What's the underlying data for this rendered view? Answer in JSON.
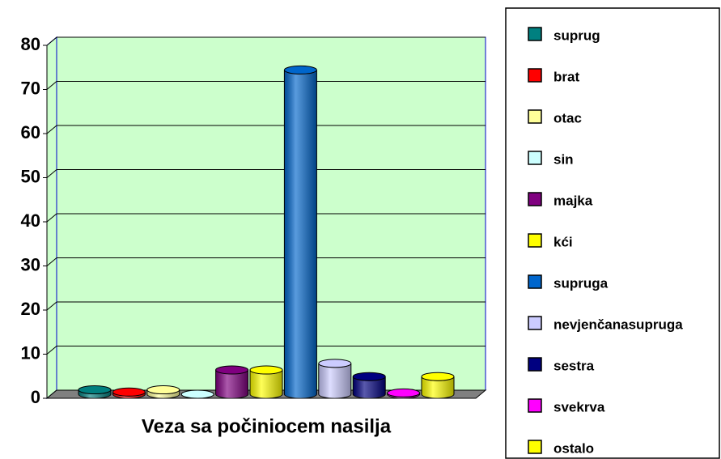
{
  "chart_data": {
    "type": "bar3d",
    "categories": [
      "Veza sa počiniocem nasilja"
    ],
    "series": [
      {
        "name": "suprug",
        "color": "#008080",
        "values": [
          1
        ]
      },
      {
        "name": "brat",
        "color": "#ff0000",
        "values": [
          0.5
        ]
      },
      {
        "name": "otac",
        "color": "#ffff99",
        "values": [
          1
        ]
      },
      {
        "name": "sin",
        "color": "#ccffff",
        "values": [
          0
        ]
      },
      {
        "name": "majka",
        "color": "#800080",
        "values": [
          5.5
        ]
      },
      {
        "name": "kći",
        "color": "#ffff00",
        "values": [
          5.5
        ]
      },
      {
        "name": "supruga",
        "color": "#0066cc",
        "values": [
          73.5
        ]
      },
      {
        "name": "nevjenčanasupruga",
        "color": "#ccccff",
        "values": [
          7
        ]
      },
      {
        "name": "sestra",
        "color": "#000080",
        "values": [
          4
        ]
      },
      {
        "name": "svekrva",
        "color": "#ff00ff",
        "values": [
          0.3
        ]
      },
      {
        "name": "ostalo",
        "color": "#ffff00",
        "values": [
          4
        ]
      }
    ],
    "ylim": [
      0,
      80
    ],
    "yticks": [
      0,
      10,
      20,
      30,
      40,
      50,
      60,
      70,
      80
    ],
    "grid": true,
    "legend": "right",
    "background": "#ccffcc"
  }
}
